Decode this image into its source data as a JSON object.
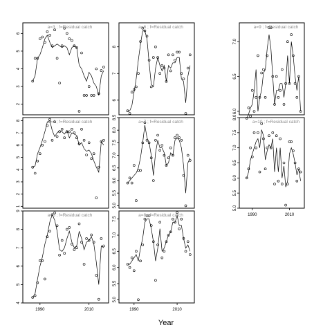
{
  "figure": {
    "xlabel": "Year"
  },
  "chart_data": [
    {
      "type": "line",
      "label": "a=3 ; f=Residual catch",
      "xlim": [
        1983,
        2018
      ],
      "ylim": [
        1.4,
        6.6
      ],
      "yticks": [
        2,
        3,
        4,
        5,
        6
      ],
      "xticks": [],
      "x": [
        1987,
        1988,
        1989,
        1990,
        1991,
        1992,
        1993,
        1994,
        1995,
        1996,
        1997,
        1998,
        1999,
        2000,
        2001,
        2002,
        2003,
        2004,
        2005,
        2006,
        2007,
        2008,
        2009,
        2010,
        2011,
        2012,
        2013,
        2014,
        2015,
        2016
      ],
      "observed": [
        3.3,
        4.6,
        4.6,
        5.7,
        5.8,
        5.5,
        6.1,
        5.9,
        5.3,
        6.2,
        4.6,
        3.2,
        5.3,
        6.3,
        6.0,
        5.7,
        5.6,
        5.3,
        5.2,
        1.6,
        4.9,
        2.5,
        2.5,
        3.0,
        2.5,
        2.5,
        4.0,
        2.6,
        3.9,
        4.1
      ],
      "fitted": [
        3.3,
        3.6,
        4.6,
        4.8,
        5.2,
        5.7,
        5.9,
        5.5,
        5.2,
        5.3,
        5.4,
        5.3,
        5.2,
        5.3,
        5.2,
        4.8,
        5.2,
        5.3,
        5.2,
        4.2,
        4.0,
        3.6,
        3.3,
        3.8,
        3.6,
        3.2,
        3.0,
        2.5,
        3.6,
        3.9
      ]
    },
    {
      "type": "line",
      "label": "a=6 ; f=Residual catch",
      "xlim": [
        1983,
        2018
      ],
      "ylim": [
        5.45,
        8.9
      ],
      "yticks": [
        6,
        7,
        8
      ],
      "xticks": [],
      "x": [
        1987,
        1988,
        1989,
        1990,
        1991,
        1992,
        1993,
        1994,
        1995,
        1996,
        1997,
        1998,
        1999,
        2000,
        2001,
        2002,
        2003,
        2004,
        2005,
        2006,
        2007,
        2008,
        2009,
        2010,
        2011,
        2012,
        2013,
        2014,
        2015,
        2016
      ],
      "observed": [
        5.6,
        5.5,
        6.3,
        6.4,
        6.5,
        7.0,
        8.2,
        8.7,
        8.6,
        8.4,
        7.5,
        6.5,
        7.6,
        8.0,
        7.6,
        7.0,
        7.3,
        7.2,
        6.7,
        7.7,
        7.1,
        7.7,
        7.5,
        7.8,
        7.8,
        7.0,
        6.8,
        5.5,
        7.2,
        7.7
      ],
      "fitted": [
        5.6,
        5.6,
        5.8,
        6.3,
        6.8,
        7.5,
        8.1,
        8.6,
        8.6,
        8.3,
        7.4,
        6.6,
        6.5,
        7.2,
        7.6,
        7.3,
        7.1,
        7.3,
        6.7,
        7.3,
        7.2,
        7.4,
        7.4,
        7.6,
        7.6,
        6.8,
        6.7,
        5.9,
        6.9,
        7.3
      ]
    },
    {
      "type": "line",
      "label": "a=9 ; f=Residual catch",
      "xlim": [
        1983,
        2018
      ],
      "ylim": [
        5.95,
        7.27
      ],
      "yticks": [
        6.0,
        6.5,
        7.0
      ],
      "xticks": [],
      "x": [
        1987,
        1988,
        1989,
        1990,
        1991,
        1992,
        1993,
        1994,
        1995,
        1996,
        1997,
        1998,
        1999,
        2000,
        2001,
        2002,
        2003,
        2004,
        2005,
        2006,
        2007,
        2008,
        2009,
        2010,
        2011,
        2012,
        2013,
        2014,
        2015,
        2016
      ],
      "observed": [
        5.9,
        6.05,
        5.93,
        6.3,
        6.0,
        6.2,
        6.8,
        6.2,
        6.55,
        6.6,
        6.2,
        6.8,
        7.2,
        7.2,
        6.5,
        6.1,
        6.5,
        6.2,
        6.3,
        6.6,
        6.1,
        6.4,
        7.0,
        6.4,
        7.1,
        6.8,
        6.4,
        6.2,
        6.5,
        6.0
      ],
      "fitted": [
        5.9,
        5.96,
        6.05,
        6.1,
        6.3,
        6.6,
        6.0,
        6.2,
        6.3,
        6.55,
        6.6,
        6.9,
        7.1,
        6.9,
        6.5,
        6.1,
        6.3,
        6.3,
        6.4,
        6.4,
        6.2,
        6.4,
        6.8,
        6.4,
        7.0,
        6.8,
        6.5,
        6.3,
        6.5,
        6.0
      ]
    },
    {
      "type": "line",
      "label": "a=4 ; f=Residual catch",
      "xlim": [
        1983,
        2018
      ],
      "ylim": [
        0.85,
        8.25
      ],
      "yticks": [
        1,
        2,
        3,
        4,
        5,
        6,
        7,
        8
      ],
      "xticks": [],
      "x": [
        1987,
        1988,
        1989,
        1990,
        1991,
        1992,
        1993,
        1994,
        1995,
        1996,
        1997,
        1998,
        1999,
        2000,
        2001,
        2002,
        2003,
        2004,
        2005,
        2006,
        2007,
        2008,
        2009,
        2010,
        2011,
        2012,
        2013,
        2014,
        2015,
        2016
      ],
      "observed": [
        4.2,
        3.7,
        4.7,
        5.3,
        6.0,
        6.3,
        7.6,
        8.1,
        6.4,
        7.9,
        6.7,
        7.1,
        7.3,
        6.6,
        7.1,
        7.1,
        7.3,
        7.0,
        6.6,
        6.1,
        7.3,
        6.4,
        5.2,
        6.2,
        4.9,
        5.3,
        1.7,
        4.2,
        6.3,
        6.4
      ],
      "fitted": [
        4.2,
        4.3,
        5.3,
        5.8,
        6.4,
        7.1,
        7.9,
        8.0,
        7.2,
        6.7,
        7.0,
        7.2,
        7.1,
        6.9,
        7.2,
        6.6,
        7.0,
        6.9,
        6.8,
        6.0,
        6.2,
        5.7,
        5.5,
        5.6,
        5.3,
        4.7,
        4.2,
        3.8,
        6.3,
        6.0
      ]
    },
    {
      "type": "line",
      "label": "a=7 ; f=Residual catch",
      "xlim": [
        1983,
        2018
      ],
      "ylim": [
        4.9,
        8.5
      ],
      "yticks": [
        5.0,
        5.5,
        6.0,
        6.5,
        7.0,
        7.5,
        8.0,
        8.5
      ],
      "xticks": [],
      "x": [
        1987,
        1988,
        1989,
        1990,
        1991,
        1992,
        1993,
        1994,
        1995,
        1996,
        1997,
        1998,
        1999,
        2000,
        2001,
        2002,
        2003,
        2004,
        2005,
        2006,
        2007,
        2008,
        2009,
        2010,
        2011,
        2012,
        2013,
        2014,
        2015,
        2016
      ],
      "observed": [
        5.9,
        6.1,
        5.9,
        6.6,
        5.2,
        6.4,
        6.4,
        7.5,
        8.3,
        7.6,
        7.5,
        6.9,
        6.0,
        7.6,
        7.8,
        7.2,
        7.4,
        7.0,
        6.6,
        6.9,
        7.3,
        7.0,
        7.7,
        7.8,
        7.7,
        7.6,
        6.2,
        5.0,
        7.0,
        6.8
      ],
      "fitted": [
        5.9,
        6.0,
        6.1,
        6.2,
        6.3,
        6.5,
        6.9,
        7.5,
        8.2,
        7.7,
        7.5,
        7.0,
        6.2,
        7.1,
        7.6,
        7.3,
        7.3,
        7.1,
        6.6,
        6.7,
        7.1,
        7.0,
        7.6,
        7.7,
        7.6,
        7.3,
        6.6,
        5.5,
        6.7,
        6.9
      ]
    },
    {
      "type": "line",
      "label": "a=10 ; f=Residual catch",
      "xlim": [
        1983,
        2018
      ],
      "ylim": [
        5.0,
        8.0
      ],
      "yticks": [
        5.0,
        5.5,
        6.0,
        6.5,
        7.0,
        7.5,
        8.0
      ],
      "xticks": [
        1990,
        2010
      ],
      "x": [
        1987,
        1988,
        1989,
        1990,
        1991,
        1992,
        1993,
        1994,
        1995,
        1996,
        1997,
        1998,
        1999,
        2000,
        2001,
        2002,
        2003,
        2004,
        2005,
        2006,
        2007,
        2008,
        2009,
        2010,
        2011,
        2012,
        2013,
        2014,
        2015,
        2016
      ],
      "observed": [
        6.0,
        6.3,
        7.0,
        6.7,
        7.5,
        7.0,
        7.5,
        6.2,
        7.8,
        7.3,
        6.3,
        7.0,
        7.4,
        7.0,
        7.5,
        5.8,
        7.4,
        5.9,
        7.3,
        5.8,
        6.5,
        5.1,
        5.8,
        7.2,
        7.2,
        6.9,
        6.5,
        5.9,
        6.3,
        6.2
      ],
      "fitted": [
        6.0,
        6.2,
        6.6,
        6.8,
        7.0,
        7.2,
        7.3,
        7.0,
        7.6,
        7.4,
        6.6,
        6.9,
        7.1,
        7.0,
        7.3,
        6.2,
        7.0,
        6.2,
        7.0,
        6.0,
        6.4,
        5.7,
        5.9,
        6.8,
        7.0,
        6.8,
        6.5,
        6.1,
        6.3,
        5.9
      ]
    },
    {
      "type": "line",
      "label": "a=5 ; f=Residual catch",
      "xlim": [
        1983,
        2018
      ],
      "ylim": [
        4.0,
        9.0
      ],
      "yticks": [
        4,
        5,
        6,
        7,
        8,
        9
      ],
      "xticks": [
        1990,
        2010
      ],
      "x": [
        1987,
        1988,
        1989,
        1990,
        1991,
        1992,
        1993,
        1994,
        1995,
        1996,
        1997,
        1998,
        1999,
        2000,
        2001,
        2002,
        2003,
        2004,
        2005,
        2006,
        2007,
        2008,
        2009,
        2010,
        2011,
        2012,
        2013,
        2014,
        2015,
        2016
      ],
      "observed": [
        4.3,
        4.4,
        5.1,
        6.3,
        6.3,
        5.3,
        7.6,
        7.9,
        8.8,
        8.9,
        8.2,
        6.6,
        7.4,
        6.7,
        8.0,
        8.1,
        7.2,
        6.9,
        7.0,
        8.3,
        7.3,
        6.1,
        7.5,
        7.4,
        7.7,
        7.3,
        5.5,
        4.2,
        7.5,
        7.1
      ],
      "fitted": [
        4.3,
        4.5,
        5.3,
        6.0,
        6.5,
        7.2,
        7.7,
        8.4,
        8.8,
        8.5,
        7.9,
        6.9,
        6.8,
        7.0,
        7.5,
        7.9,
        7.3,
        7.0,
        7.1,
        7.9,
        7.5,
        6.9,
        7.3,
        7.4,
        7.6,
        7.2,
        6.2,
        5.0,
        7.1,
        7.0
      ]
    },
    {
      "type": "line",
      "label": "a=8 ; f=Residual catch",
      "xlim": [
        1983,
        2018
      ],
      "ylim": [
        4.9,
        7.75
      ],
      "yticks": [
        5.0,
        5.5,
        6.0,
        6.5,
        7.0,
        7.5
      ],
      "xticks": [
        1990,
        2010
      ],
      "x": [
        1987,
        1988,
        1989,
        1990,
        1991,
        1992,
        1993,
        1994,
        1995,
        1996,
        1997,
        1998,
        1999,
        2000,
        2001,
        2002,
        2003,
        2004,
        2005,
        2006,
        2007,
        2008,
        2009,
        2010,
        2011,
        2012,
        2013,
        2014,
        2015,
        2016
      ],
      "observed": [
        6.1,
        6.0,
        6.3,
        5.9,
        6.5,
        5.0,
        6.2,
        6.7,
        7.5,
        7.6,
        7.6,
        7.3,
        6.8,
        5.6,
        6.7,
        7.4,
        6.3,
        6.5,
        6.8,
        7.0,
        7.1,
        7.5,
        7.4,
        7.7,
        7.2,
        7.5,
        6.9,
        6.5,
        6.8,
        6.4
      ],
      "fitted": [
        6.1,
        6.1,
        6.2,
        6.3,
        6.4,
        6.2,
        6.6,
        6.9,
        7.4,
        7.5,
        7.5,
        7.2,
        6.8,
        6.2,
        6.6,
        7.2,
        6.5,
        6.6,
        6.8,
        7.0,
        7.1,
        7.4,
        7.4,
        7.6,
        7.3,
        7.3,
        6.9,
        6.6,
        6.7,
        6.5
      ]
    }
  ]
}
